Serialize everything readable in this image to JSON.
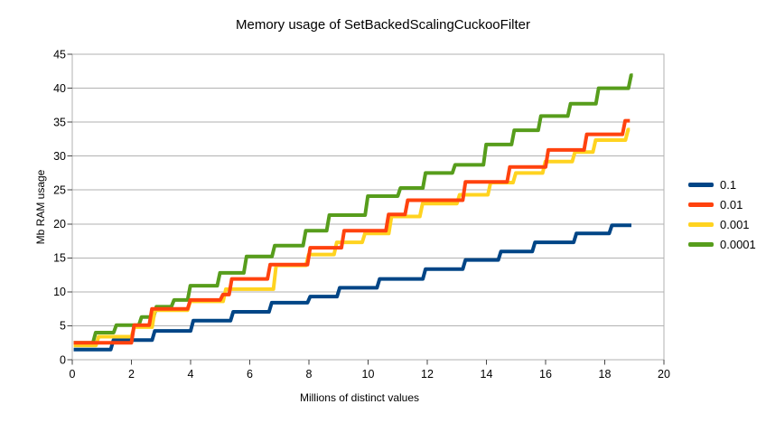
{
  "chart_data": {
    "type": "line",
    "step_style": "step-after",
    "title": "Memory usage of SetBackedScalingCuckooFilter",
    "xlabel": "Millions of distinct values",
    "ylabel": "Mb RAM usage",
    "xlim": [
      0,
      20
    ],
    "ylim": [
      0,
      45
    ],
    "x_ticks": [
      0,
      2,
      4,
      6,
      8,
      10,
      12,
      14,
      16,
      18,
      20
    ],
    "y_ticks": [
      0,
      5,
      10,
      15,
      20,
      25,
      30,
      35,
      40,
      45
    ],
    "grid": "horizontal-only",
    "legend_position": "right",
    "colors": {
      "background": "#ffffff",
      "grid": "#b2b2b2",
      "plot_border": "#b2b2b2",
      "tick_mark": "#464646",
      "tick_text": "#000000",
      "title_text": "#000000"
    },
    "draw_order": [
      0,
      3,
      2,
      1
    ],
    "series": [
      {
        "name": "0.1",
        "color": "#004586",
        "end_x": 18.9,
        "steps": [
          [
            0.05,
            1.5
          ],
          [
            1.3,
            2.9
          ],
          [
            2.7,
            4.25
          ],
          [
            4.0,
            5.75
          ],
          [
            5.35,
            7.05
          ],
          [
            6.65,
            8.4
          ],
          [
            7.95,
            9.3
          ],
          [
            8.95,
            10.6
          ],
          [
            10.3,
            11.9
          ],
          [
            11.85,
            13.35
          ],
          [
            13.2,
            14.7
          ],
          [
            14.4,
            15.95
          ],
          [
            15.55,
            17.3
          ],
          [
            16.95,
            18.6
          ],
          [
            18.15,
            19.8
          ]
        ]
      },
      {
        "name": "0.01",
        "color": "#FF420E",
        "end_x": 18.85,
        "steps": [
          [
            0.05,
            2.5
          ],
          [
            2.0,
            5.1
          ],
          [
            2.6,
            7.5
          ],
          [
            3.9,
            8.8
          ],
          [
            5.0,
            9.6
          ],
          [
            5.3,
            11.9
          ],
          [
            6.6,
            14.0
          ],
          [
            7.95,
            16.5
          ],
          [
            9.1,
            19.0
          ],
          [
            10.6,
            21.4
          ],
          [
            11.25,
            23.5
          ],
          [
            13.2,
            26.2
          ],
          [
            14.7,
            28.4
          ],
          [
            16.0,
            30.9
          ],
          [
            17.3,
            33.2
          ],
          [
            18.6,
            35.2
          ]
        ]
      },
      {
        "name": "0.001",
        "color": "#FFD320",
        "end_x": 18.85,
        "steps": [
          [
            0.05,
            2.1
          ],
          [
            0.8,
            3.4
          ],
          [
            2.0,
            4.8
          ],
          [
            2.7,
            7.3
          ],
          [
            3.9,
            8.6
          ],
          [
            5.1,
            10.4
          ],
          [
            6.8,
            13.9
          ],
          [
            7.9,
            15.5
          ],
          [
            8.85,
            17.3
          ],
          [
            9.8,
            18.6
          ],
          [
            10.7,
            21.1
          ],
          [
            11.75,
            23.0
          ],
          [
            13.0,
            24.3
          ],
          [
            14.05,
            26.1
          ],
          [
            14.9,
            27.5
          ],
          [
            15.9,
            29.2
          ],
          [
            16.9,
            30.6
          ],
          [
            17.6,
            32.35
          ],
          [
            18.7,
            33.9
          ]
        ]
      },
      {
        "name": "0.0001",
        "color": "#579D1C",
        "end_x": 18.95,
        "steps": [
          [
            0.05,
            2.5
          ],
          [
            0.7,
            4.0
          ],
          [
            1.4,
            5.1
          ],
          [
            2.25,
            6.3
          ],
          [
            2.75,
            7.8
          ],
          [
            3.35,
            8.8
          ],
          [
            3.9,
            10.9
          ],
          [
            4.9,
            12.8
          ],
          [
            5.8,
            15.2
          ],
          [
            6.75,
            16.8
          ],
          [
            7.8,
            19.0
          ],
          [
            8.6,
            21.3
          ],
          [
            9.9,
            24.1
          ],
          [
            11.0,
            25.3
          ],
          [
            11.85,
            27.5
          ],
          [
            12.85,
            28.7
          ],
          [
            13.9,
            31.7
          ],
          [
            14.85,
            33.8
          ],
          [
            15.75,
            35.9
          ],
          [
            16.75,
            37.7
          ],
          [
            17.7,
            40.0
          ],
          [
            18.8,
            41.9
          ]
        ]
      }
    ]
  }
}
